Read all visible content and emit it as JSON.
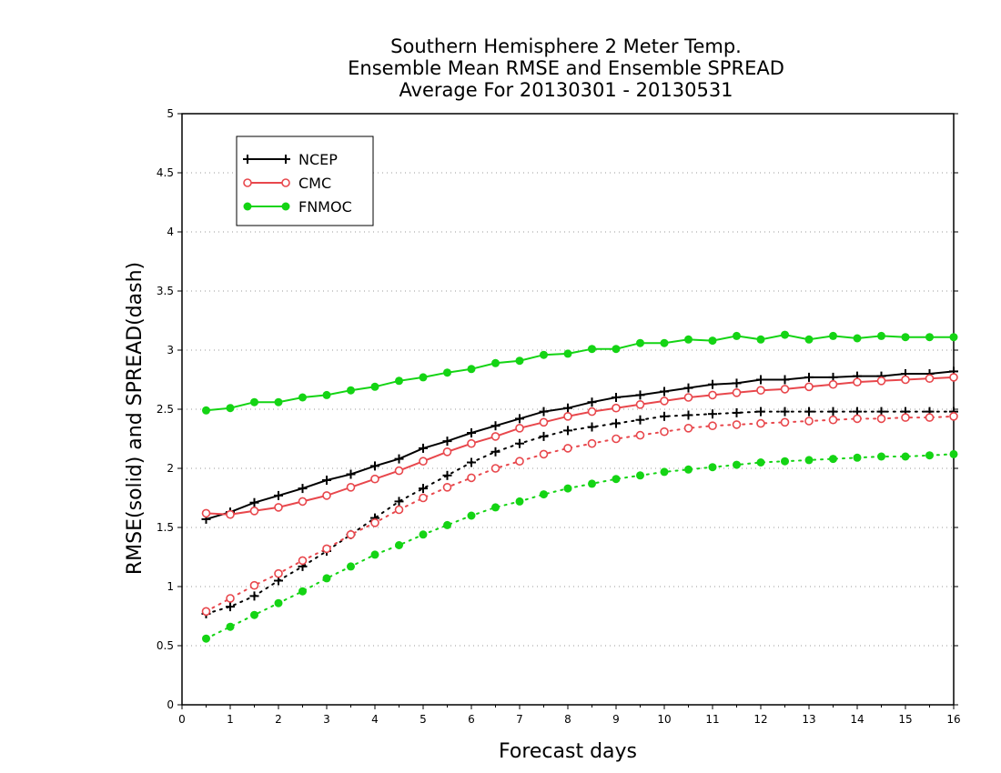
{
  "chart_data": {
    "type": "line",
    "title": [
      "Southern Hemisphere 2 Meter Temp.",
      "Ensemble Mean RMSE and Ensemble SPREAD",
      "Average For 20130301 - 20130531"
    ],
    "xlabel": "Forecast days",
    "ylabel": "RMSE(solid) and SPREAD(dash)",
    "xlim": [
      0,
      16
    ],
    "ylim": [
      0,
      5
    ],
    "xticks": [
      "0",
      "1",
      "2",
      "3",
      "4",
      "5",
      "6",
      "7",
      "8",
      "9",
      "10",
      "11",
      "12",
      "13",
      "14",
      "15",
      "16"
    ],
    "yticks": [
      "0",
      "0.5",
      "1",
      "1.5",
      "2",
      "2.5",
      "3",
      "3.5",
      "4",
      "4.5",
      "5"
    ],
    "grid": "horizontal dotted",
    "legend_position": "top-left",
    "x": [
      0.5,
      1,
      1.5,
      2,
      2.5,
      3,
      3.5,
      4,
      4.5,
      5,
      5.5,
      6,
      6.5,
      7,
      7.5,
      8,
      8.5,
      9,
      9.5,
      10,
      10.5,
      11,
      11.5,
      12,
      12.5,
      13,
      13.5,
      14,
      14.5,
      15,
      15.5,
      16
    ],
    "series": [
      {
        "name": "NCEP",
        "color": "#000000",
        "marker": "plus",
        "rmse": [
          1.57,
          1.63,
          1.71,
          1.77,
          1.83,
          1.9,
          1.95,
          2.02,
          2.08,
          2.17,
          2.23,
          2.3,
          2.36,
          2.42,
          2.48,
          2.51,
          2.56,
          2.6,
          2.62,
          2.65,
          2.68,
          2.71,
          2.72,
          2.75,
          2.75,
          2.77,
          2.77,
          2.78,
          2.78,
          2.8,
          2.8,
          2.82
        ],
        "spread": [
          0.77,
          0.83,
          0.92,
          1.05,
          1.17,
          1.3,
          1.44,
          1.58,
          1.72,
          1.83,
          1.94,
          2.05,
          2.14,
          2.21,
          2.27,
          2.32,
          2.35,
          2.38,
          2.41,
          2.44,
          2.45,
          2.46,
          2.47,
          2.48,
          2.48,
          2.48,
          2.48,
          2.48,
          2.48,
          2.48,
          2.48,
          2.48
        ]
      },
      {
        "name": "CMC",
        "color": "#e8474c",
        "marker": "circle",
        "rmse": [
          1.62,
          1.61,
          1.64,
          1.67,
          1.72,
          1.77,
          1.84,
          1.91,
          1.98,
          2.06,
          2.14,
          2.21,
          2.27,
          2.34,
          2.39,
          2.44,
          2.48,
          2.51,
          2.54,
          2.57,
          2.6,
          2.62,
          2.64,
          2.66,
          2.67,
          2.69,
          2.71,
          2.73,
          2.74,
          2.75,
          2.76,
          2.77
        ],
        "spread": [
          0.79,
          0.9,
          1.01,
          1.11,
          1.22,
          1.32,
          1.44,
          1.54,
          1.65,
          1.75,
          1.84,
          1.92,
          2.0,
          2.06,
          2.12,
          2.17,
          2.21,
          2.25,
          2.28,
          2.31,
          2.34,
          2.36,
          2.37,
          2.38,
          2.39,
          2.4,
          2.41,
          2.42,
          2.42,
          2.43,
          2.43,
          2.44
        ]
      },
      {
        "name": "FNMOC",
        "color": "#14d414",
        "marker": "dot",
        "rmse": [
          2.49,
          2.51,
          2.56,
          2.56,
          2.6,
          2.62,
          2.66,
          2.69,
          2.74,
          2.77,
          2.81,
          2.84,
          2.89,
          2.91,
          2.96,
          2.97,
          3.01,
          3.01,
          3.06,
          3.06,
          3.09,
          3.08,
          3.12,
          3.09,
          3.13,
          3.09,
          3.12,
          3.1,
          3.12,
          3.11,
          3.11,
          3.11
        ],
        "spread": [
          0.56,
          0.66,
          0.76,
          0.86,
          0.96,
          1.07,
          1.17,
          1.27,
          1.35,
          1.44,
          1.52,
          1.6,
          1.67,
          1.72,
          1.78,
          1.83,
          1.87,
          1.91,
          1.94,
          1.97,
          1.99,
          2.01,
          2.03,
          2.05,
          2.06,
          2.07,
          2.08,
          2.09,
          2.1,
          2.1,
          2.11,
          2.12
        ]
      }
    ]
  }
}
